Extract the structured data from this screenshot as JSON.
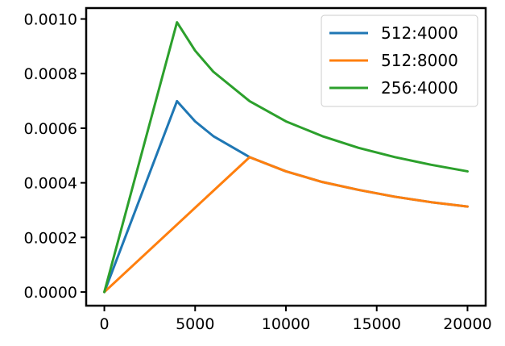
{
  "chart_data": {
    "type": "line",
    "title": "",
    "xlabel": "",
    "ylabel": "",
    "xlim": [
      -1000,
      21000
    ],
    "ylim": [
      -5e-05,
      0.00104
    ],
    "xticks": [
      0,
      5000,
      10000,
      15000,
      20000
    ],
    "xtick_labels": [
      "0",
      "5000",
      "10000",
      "15000",
      "20000"
    ],
    "yticks": [
      0,
      0.0002,
      0.0004,
      0.0006,
      0.0008,
      0.001
    ],
    "ytick_labels": [
      "0.0000",
      "0.0002",
      "0.0004",
      "0.0006",
      "0.0008",
      "0.0010"
    ],
    "grid": false,
    "legend_position": "top-right",
    "series": [
      {
        "name": "512:4000",
        "color": "#1f77b4",
        "x": [
          1,
          4000,
          5000,
          6000,
          8000,
          10000,
          12000,
          14000,
          16000,
          18000,
          20000
        ],
        "y": [
          0.0,
          0.000699,
          0.000625,
          0.000571,
          0.000494,
          0.000442,
          0.000403,
          0.000374,
          0.000349,
          0.000329,
          0.000313
        ]
      },
      {
        "name": "512:8000",
        "color": "#ff7f0e",
        "x": [
          1,
          8000,
          10000,
          12000,
          14000,
          16000,
          18000,
          20000
        ],
        "y": [
          0.0,
          0.000494,
          0.000442,
          0.000403,
          0.000374,
          0.000349,
          0.000329,
          0.000313
        ]
      },
      {
        "name": "256:4000",
        "color": "#2ca02c",
        "x": [
          1,
          4000,
          5000,
          6000,
          8000,
          10000,
          12000,
          14000,
          16000,
          18000,
          20000
        ],
        "y": [
          0.0,
          0.000988,
          0.000884,
          0.000807,
          0.000699,
          0.000625,
          0.000571,
          0.000528,
          0.000494,
          0.000466,
          0.000442
        ]
      }
    ]
  }
}
